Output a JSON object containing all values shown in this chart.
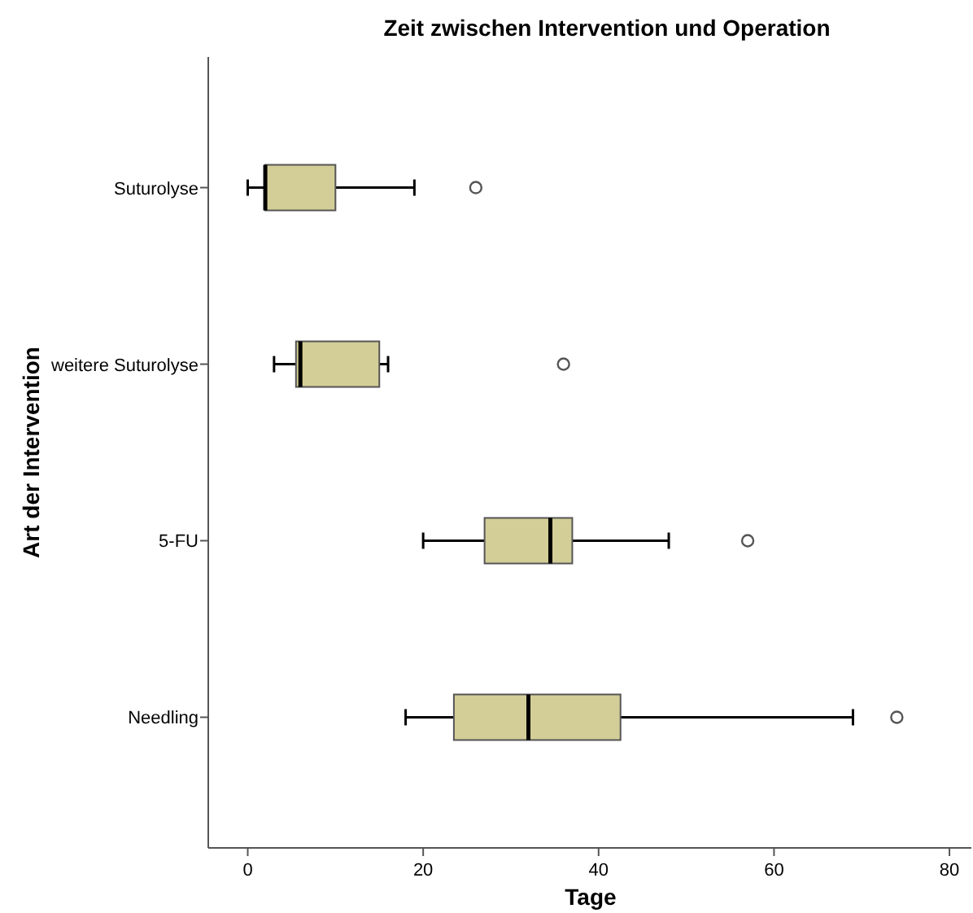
{
  "chart_data": {
    "type": "box",
    "orientation": "horizontal",
    "title": "Zeit zwischen Intervention und Operation",
    "xlabel": "Tage",
    "ylabel": "Art der Intervention",
    "categories": [
      "Suturolyse",
      "weitere Suturolyse",
      "5-FU",
      "Needling"
    ],
    "color": "#d3ce97",
    "boxes": [
      {
        "low": 0,
        "q1": 2,
        "median": 2,
        "q3": 10,
        "high": 19,
        "outliers": [
          26
        ]
      },
      {
        "low": 3,
        "q1": 5.5,
        "median": 6,
        "q3": 15,
        "high": 16,
        "outliers": [
          36
        ]
      },
      {
        "low": 20,
        "q1": 27,
        "median": 34.5,
        "q3": 37,
        "high": 48,
        "outliers": [
          57
        ]
      },
      {
        "low": 18,
        "q1": 23.5,
        "median": 32,
        "q3": 42.5,
        "high": 69,
        "outliers": [
          74
        ]
      }
    ],
    "xlim": [
      -4.5,
      82.5
    ],
    "xticks": [
      0,
      20,
      40,
      60,
      80
    ],
    "grid": false
  }
}
